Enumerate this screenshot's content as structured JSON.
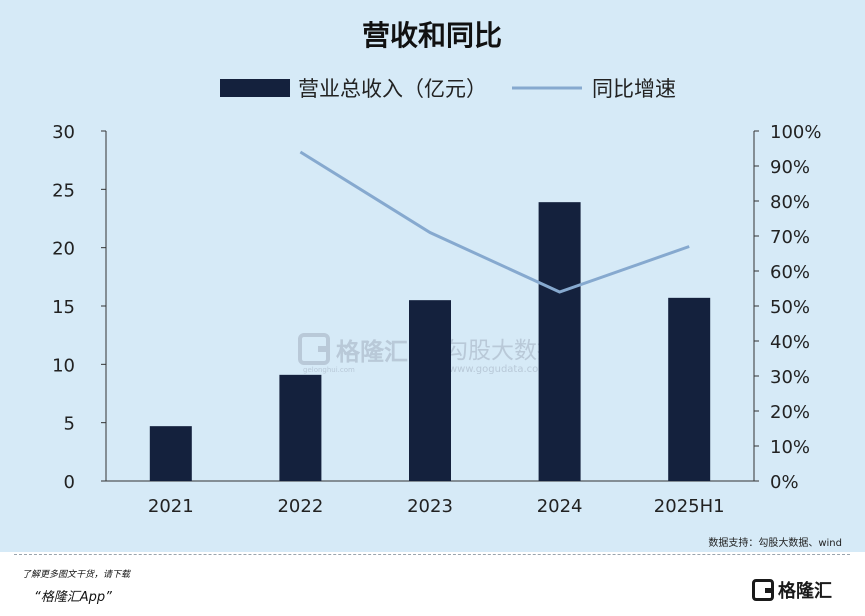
{
  "chart_data": {
    "type": "bar",
    "title": "营收和同比",
    "categories": [
      "2021",
      "2022",
      "2023",
      "2024",
      "2025H1"
    ],
    "series": [
      {
        "name": "营业总收入（亿元）",
        "type": "bar",
        "axis": "left",
        "color": "#14213d",
        "values": [
          4.7,
          9.1,
          15.5,
          23.9,
          15.7
        ]
      },
      {
        "name": "同比增速",
        "type": "line",
        "axis": "right",
        "color": "#86a9cf",
        "values": [
          null,
          0.94,
          0.71,
          0.54,
          0.67
        ]
      }
    ],
    "y_left": {
      "ylim": [
        0,
        30
      ],
      "ticks": [
        "0",
        "5",
        "10",
        "15",
        "20",
        "25",
        "30"
      ]
    },
    "y_right": {
      "ylim": [
        0,
        1.0
      ],
      "ticks": [
        "0%",
        "10%",
        "20%",
        "30%",
        "40%",
        "50%",
        "60%",
        "70%",
        "80%",
        "90%",
        "100%"
      ]
    },
    "legend_position": "top-center",
    "grid": false
  },
  "source_text": "数据支持：勾股大数据、wind",
  "watermark": {
    "brand": "格隆汇",
    "brand_url": "gelonghui.com",
    "partner": "勾股大数据",
    "partner_url": "www.gogudata.com"
  },
  "footer": {
    "promo_line": "了解更多图文干货，请下载",
    "promo_app": "“格隆汇App”",
    "logo_text": "格隆汇"
  }
}
